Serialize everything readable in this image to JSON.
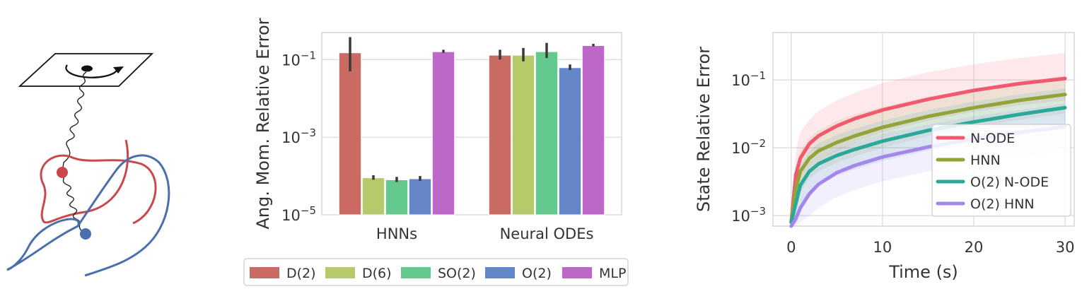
{
  "chart_data": [
    {
      "type": "illustration",
      "description_name": "double-spring-pendulum",
      "colors": {
        "pendulum1": "#c9484c",
        "pendulum2": "#4a6fad",
        "spring": "#111111"
      }
    },
    {
      "type": "bar",
      "ylabel": "Ang. Mom. Relative Error",
      "yscale": "log",
      "ylim": [
        1e-05,
        0.5
      ],
      "yticks": [
        "10^{-5}",
        "10^{-3}",
        "10^{-1}"
      ],
      "ytick_values": [
        1e-05,
        0.001,
        0.1
      ],
      "categories": [
        "HNNs",
        "Neural ODEs"
      ],
      "series": [
        {
          "name": "D(2)",
          "color": "#c96a63",
          "values": [
            0.15,
            0.13
          ],
          "err_lo": [
            0.05,
            0.1
          ],
          "err_hi": [
            0.38,
            0.18
          ]
        },
        {
          "name": "D(6)",
          "color": "#b5cb6b",
          "values": [
            9e-05,
            0.13
          ],
          "err_lo": [
            8e-05,
            0.09
          ],
          "err_hi": [
            0.000105,
            0.2
          ]
        },
        {
          "name": "SO(2)",
          "color": "#63c98f",
          "values": [
            8e-05,
            0.16
          ],
          "err_lo": [
            7e-05,
            0.11
          ],
          "err_hi": [
            9.5e-05,
            0.27
          ]
        },
        {
          "name": "O(2)",
          "color": "#6585c9",
          "values": [
            8.5e-05,
            0.062
          ],
          "err_lo": [
            7.5e-05,
            0.054
          ],
          "err_hi": [
            0.0001,
            0.075
          ]
        },
        {
          "name": "MLP",
          "color": "#bd67c9",
          "values": [
            0.16,
            0.23
          ],
          "err_lo": [
            0.15,
            0.22
          ],
          "err_hi": [
            0.18,
            0.255
          ]
        }
      ],
      "legend": {
        "labels": [
          "D(2)",
          "D(6)",
          "SO(2)",
          "O(2)",
          "MLP"
        ],
        "placement": "bottom"
      }
    },
    {
      "type": "line",
      "xlabel": "Time (s)",
      "ylabel": "State Relative Error",
      "yscale": "log",
      "xlim": [
        -2,
        31
      ],
      "ylim": [
        0.0007,
        0.5
      ],
      "xticks": [
        "0",
        "10",
        "20",
        "30"
      ],
      "xtick_values": [
        0,
        10,
        20,
        30
      ],
      "yticks": [
        "10^{-3}",
        "10^{-2}",
        "10^{-1}"
      ],
      "ytick_values": [
        0.001,
        0.01,
        0.1
      ],
      "x": [
        0,
        0.5,
        1,
        2,
        3,
        5,
        7,
        10,
        15,
        20,
        25,
        30
      ],
      "series": [
        {
          "name": "N-ODE",
          "color": "#f2586f",
          "values": [
            0.0008,
            0.004,
            0.007,
            0.0115,
            0.015,
            0.021,
            0.027,
            0.036,
            0.052,
            0.07,
            0.088,
            0.105
          ],
          "band_lo": [
            0.0008,
            0.0015,
            0.003,
            0.005,
            0.0065,
            0.009,
            0.012,
            0.017,
            0.025,
            0.034,
            0.042,
            0.05
          ],
          "band_hi": [
            0.0008,
            0.009,
            0.017,
            0.026,
            0.035,
            0.05,
            0.065,
            0.09,
            0.13,
            0.17,
            0.21,
            0.25
          ]
        },
        {
          "name": "HNN",
          "color": "#94a23a",
          "values": [
            0.0008,
            0.0025,
            0.0045,
            0.007,
            0.009,
            0.012,
            0.015,
            0.02,
            0.029,
            0.039,
            0.05,
            0.061
          ],
          "band_lo": [
            0.0008,
            0.0012,
            0.0022,
            0.0035,
            0.0045,
            0.006,
            0.0075,
            0.01,
            0.015,
            0.02,
            0.026,
            0.032
          ],
          "band_hi": [
            0.0008,
            0.005,
            0.009,
            0.014,
            0.018,
            0.025,
            0.031,
            0.04,
            0.057,
            0.075,
            0.095,
            0.115
          ]
        },
        {
          "name": "O(2) N-ODE",
          "color": "#2aa898",
          "values": [
            0.0008,
            0.0015,
            0.0028,
            0.0045,
            0.0058,
            0.0077,
            0.0095,
            0.0125,
            0.018,
            0.024,
            0.031,
            0.039
          ],
          "band_lo": [
            0.0008,
            0.0009,
            0.0014,
            0.0022,
            0.0029,
            0.0039,
            0.0048,
            0.0064,
            0.0092,
            0.0122,
            0.0157,
            0.02
          ],
          "band_hi": [
            0.0008,
            0.0025,
            0.0055,
            0.009,
            0.0115,
            0.0155,
            0.019,
            0.025,
            0.036,
            0.048,
            0.061,
            0.075
          ]
        },
        {
          "name": "O(2) HNN",
          "color": "#a586ec",
          "values": [
            0.0007,
            0.0009,
            0.0013,
            0.0021,
            0.0029,
            0.0043,
            0.0055,
            0.0073,
            0.0103,
            0.0135,
            0.0168,
            0.0205
          ],
          "band_lo": [
            0.0007,
            0.0007,
            0.0008,
            0.001,
            0.0013,
            0.0019,
            0.0024,
            0.0032,
            0.0045,
            0.0058,
            0.0072,
            0.0088
          ],
          "band_hi": [
            0.0007,
            0.0013,
            0.0025,
            0.0045,
            0.0065,
            0.0095,
            0.012,
            0.016,
            0.022,
            0.029,
            0.036,
            0.045
          ]
        }
      ],
      "legend": {
        "labels": [
          "N-ODE",
          "HNN",
          "O(2) N-ODE",
          "O(2) HNN"
        ],
        "placement": "lower-right"
      }
    }
  ]
}
